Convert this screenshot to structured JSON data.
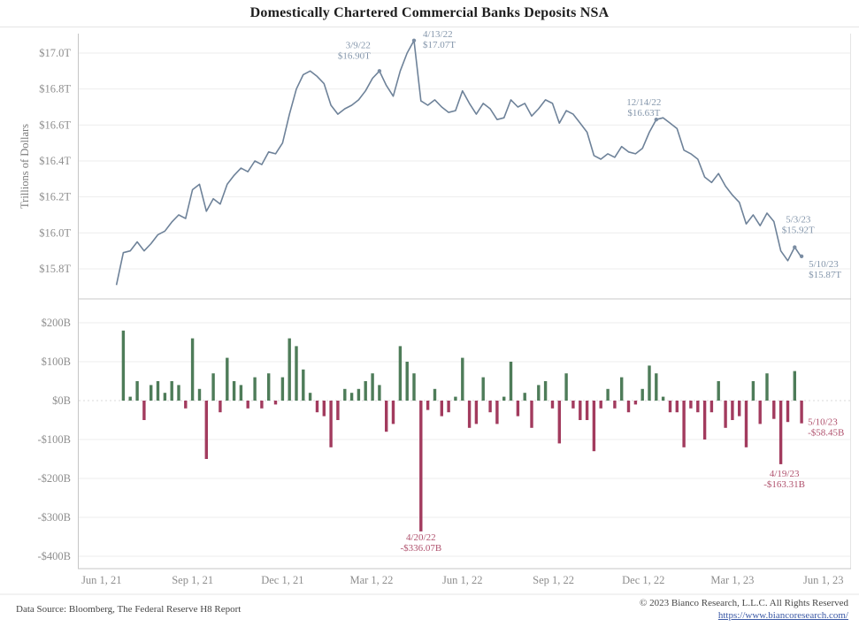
{
  "title": "Domestically Chartered Commercial Banks Deposits NSA",
  "footer": {
    "source": "Data Source: Bloomberg, The Federal Reserve H8 Report",
    "copyright": "© 2023 Bianco Research, L.L.C. All Rights Reserved",
    "link": "https://www.biancoresearch.com/"
  },
  "colors": {
    "line": "#6e8299",
    "marker": "#7b8da3",
    "line_annotation": "#8496ab",
    "bar_positive": "#4e7c59",
    "bar_negative": "#a23b5e",
    "bar_annotation": "#b0526e",
    "grid": "#ededed",
    "zero_line": "#d9d9d9",
    "axis": "#c6c6c6",
    "frame": "#e4e4e4",
    "tick_text": "#8e8e8e"
  },
  "x_axis": {
    "domain": [
      "2021-05-08",
      "2023-06-29"
    ],
    "ticks": [
      {
        "date": "2021-06-01",
        "label": "Jun 1, 21"
      },
      {
        "date": "2021-09-01",
        "label": "Sep 1, 21"
      },
      {
        "date": "2021-12-01",
        "label": "Dec 1, 21"
      },
      {
        "date": "2022-03-01",
        "label": "Mar 1, 22"
      },
      {
        "date": "2022-06-01",
        "label": "Jun 1, 22"
      },
      {
        "date": "2022-09-01",
        "label": "Sep 1, 22"
      },
      {
        "date": "2022-12-01",
        "label": "Dec 1, 22"
      },
      {
        "date": "2023-03-01",
        "label": "Mar 1, 23"
      },
      {
        "date": "2023-06-01",
        "label": "Jun 1, 23"
      }
    ]
  },
  "chart_data": [
    {
      "type": "line",
      "name": "deposits-level",
      "ylabel": "Trillions of Dollars",
      "ylim": [
        15.63,
        17.11
      ],
      "y_ticks": [
        {
          "value": 17.0,
          "label": "$17.0T"
        },
        {
          "value": 16.8,
          "label": "$16.8T"
        },
        {
          "value": 16.6,
          "label": "$16.6T"
        },
        {
          "value": 16.4,
          "label": "$16.4T"
        },
        {
          "value": 16.2,
          "label": "$16.2T"
        },
        {
          "value": 16.0,
          "label": "$16.0T"
        },
        {
          "value": 15.8,
          "label": "$15.8T"
        }
      ],
      "x": [
        "2021-06-16",
        "2021-06-23",
        "2021-06-30",
        "2021-07-07",
        "2021-07-14",
        "2021-07-21",
        "2021-07-28",
        "2021-08-04",
        "2021-08-11",
        "2021-08-18",
        "2021-08-25",
        "2021-09-01",
        "2021-09-08",
        "2021-09-15",
        "2021-09-22",
        "2021-09-29",
        "2021-10-06",
        "2021-10-13",
        "2021-10-20",
        "2021-10-27",
        "2021-11-03",
        "2021-11-10",
        "2021-11-17",
        "2021-11-24",
        "2021-12-01",
        "2021-12-08",
        "2021-12-15",
        "2021-12-22",
        "2021-12-29",
        "2022-01-05",
        "2022-01-12",
        "2022-01-19",
        "2022-01-26",
        "2022-02-02",
        "2022-02-09",
        "2022-02-16",
        "2022-02-23",
        "2022-03-02",
        "2022-03-09",
        "2022-03-16",
        "2022-03-23",
        "2022-03-30",
        "2022-04-06",
        "2022-04-13",
        "2022-04-20",
        "2022-04-27",
        "2022-05-04",
        "2022-05-11",
        "2022-05-18",
        "2022-05-25",
        "2022-06-01",
        "2022-06-08",
        "2022-06-15",
        "2022-06-22",
        "2022-06-29",
        "2022-07-06",
        "2022-07-13",
        "2022-07-20",
        "2022-07-27",
        "2022-08-03",
        "2022-08-10",
        "2022-08-17",
        "2022-08-24",
        "2022-08-31",
        "2022-09-07",
        "2022-09-14",
        "2022-09-21",
        "2022-09-28",
        "2022-10-05",
        "2022-10-12",
        "2022-10-19",
        "2022-10-26",
        "2022-11-02",
        "2022-11-09",
        "2022-11-16",
        "2022-11-23",
        "2022-11-30",
        "2022-12-07",
        "2022-12-14",
        "2022-12-21",
        "2022-12-28",
        "2023-01-04",
        "2023-01-11",
        "2023-01-18",
        "2023-01-25",
        "2023-02-01",
        "2023-02-08",
        "2023-02-15",
        "2023-02-22",
        "2023-03-01",
        "2023-03-08",
        "2023-03-15",
        "2023-03-22",
        "2023-03-29",
        "2023-04-05",
        "2023-04-12",
        "2023-04-19",
        "2023-04-26",
        "2023-05-03",
        "2023-05-10"
      ],
      "values": [
        15.71,
        15.89,
        15.9,
        15.95,
        15.9,
        15.94,
        15.99,
        16.01,
        16.06,
        16.1,
        16.08,
        16.24,
        16.27,
        16.12,
        16.19,
        16.16,
        16.27,
        16.32,
        16.36,
        16.34,
        16.4,
        16.38,
        16.45,
        16.44,
        16.5,
        16.66,
        16.8,
        16.88,
        16.9,
        16.87,
        16.83,
        16.71,
        16.66,
        16.69,
        16.71,
        16.74,
        16.79,
        16.86,
        16.9,
        16.82,
        16.76,
        16.9,
        17.0,
        17.07,
        16.734,
        16.71,
        16.74,
        16.7,
        16.67,
        16.68,
        16.79,
        16.72,
        16.66,
        16.72,
        16.69,
        16.63,
        16.64,
        16.74,
        16.7,
        16.72,
        16.65,
        16.69,
        16.74,
        16.72,
        16.61,
        16.68,
        16.66,
        16.61,
        16.56,
        16.43,
        16.41,
        16.44,
        16.42,
        16.48,
        16.45,
        16.44,
        16.47,
        16.56,
        16.63,
        16.64,
        16.61,
        16.58,
        16.46,
        16.44,
        16.41,
        16.31,
        16.28,
        16.33,
        16.26,
        16.21,
        16.17,
        16.05,
        16.1,
        16.04,
        16.11,
        16.063,
        15.9,
        15.845,
        15.921,
        15.863
      ],
      "annotations": [
        {
          "date": "2022-03-09",
          "value": 16.9,
          "date_label": "3/9/22",
          "value_label": "$16.90T"
        },
        {
          "date": "2022-04-13",
          "value": 17.07,
          "date_label": "4/13/22",
          "value_label": "$17.07T"
        },
        {
          "date": "2022-12-14",
          "value": 16.63,
          "date_label": "12/14/22",
          "value_label": "$16.63T"
        },
        {
          "date": "2023-05-03",
          "value": 15.92,
          "date_label": "5/3/23",
          "value_label": "$15.92T"
        },
        {
          "date": "2023-05-10",
          "value": 15.87,
          "date_label": "5/10/23",
          "value_label": "$15.87T"
        }
      ]
    },
    {
      "type": "bar",
      "name": "weekly-change",
      "ylabel": "",
      "ylim": [
        -432,
        239
      ],
      "y_ticks": [
        {
          "value": 200,
          "label": "$200B"
        },
        {
          "value": 100,
          "label": "$100B"
        },
        {
          "value": 0,
          "label": "$0B"
        },
        {
          "value": -100,
          "label": "-$100B"
        },
        {
          "value": -200,
          "label": "-$200B"
        },
        {
          "value": -300,
          "label": "-$300B"
        },
        {
          "value": -400,
          "label": "-$400B"
        }
      ],
      "x": [
        "2021-06-23",
        "2021-06-30",
        "2021-07-07",
        "2021-07-14",
        "2021-07-21",
        "2021-07-28",
        "2021-08-04",
        "2021-08-11",
        "2021-08-18",
        "2021-08-25",
        "2021-09-01",
        "2021-09-08",
        "2021-09-15",
        "2021-09-22",
        "2021-09-29",
        "2021-10-06",
        "2021-10-13",
        "2021-10-20",
        "2021-10-27",
        "2021-11-03",
        "2021-11-10",
        "2021-11-17",
        "2021-11-24",
        "2021-12-01",
        "2021-12-08",
        "2021-12-15",
        "2021-12-22",
        "2021-12-29",
        "2022-01-05",
        "2022-01-12",
        "2022-01-19",
        "2022-01-26",
        "2022-02-02",
        "2022-02-09",
        "2022-02-16",
        "2022-02-23",
        "2022-03-02",
        "2022-03-09",
        "2022-03-16",
        "2022-03-23",
        "2022-03-30",
        "2022-04-06",
        "2022-04-13",
        "2022-04-20",
        "2022-04-27",
        "2022-05-04",
        "2022-05-11",
        "2022-05-18",
        "2022-05-25",
        "2022-06-01",
        "2022-06-08",
        "2022-06-15",
        "2022-06-22",
        "2022-06-29",
        "2022-07-06",
        "2022-07-13",
        "2022-07-20",
        "2022-07-27",
        "2022-08-03",
        "2022-08-10",
        "2022-08-17",
        "2022-08-24",
        "2022-08-31",
        "2022-09-07",
        "2022-09-14",
        "2022-09-21",
        "2022-09-28",
        "2022-10-05",
        "2022-10-12",
        "2022-10-19",
        "2022-10-26",
        "2022-11-02",
        "2022-11-09",
        "2022-11-16",
        "2022-11-23",
        "2022-11-30",
        "2022-12-07",
        "2022-12-14",
        "2022-12-21",
        "2022-12-28",
        "2023-01-04",
        "2023-01-11",
        "2023-01-18",
        "2023-01-25",
        "2023-02-01",
        "2023-02-08",
        "2023-02-15",
        "2023-02-22",
        "2023-03-01",
        "2023-03-08",
        "2023-03-15",
        "2023-03-22",
        "2023-03-29",
        "2023-04-05",
        "2023-04-12",
        "2023-04-19",
        "2023-04-26",
        "2023-05-03",
        "2023-05-10"
      ],
      "values": [
        180,
        10,
        50,
        -50,
        40,
        50,
        20,
        50,
        40,
        -20,
        160,
        30,
        -150,
        70,
        -30,
        110,
        50,
        40,
        -20,
        60,
        -20,
        70,
        -10,
        60,
        160,
        140,
        80,
        20,
        -30,
        -40,
        -120,
        -50,
        30,
        20,
        30,
        50,
        70,
        40,
        -80,
        -60,
        140,
        100,
        70,
        -336.07,
        -24,
        30,
        -40,
        -30,
        10,
        110,
        -70,
        -60,
        60,
        -30,
        -60,
        10,
        100,
        -40,
        20,
        -70,
        40,
        50,
        -20,
        -110,
        70,
        -20,
        -50,
        -50,
        -130,
        -20,
        30,
        -20,
        60,
        -30,
        -10,
        30,
        90,
        70,
        10,
        -30,
        -30,
        -120,
        -20,
        -30,
        -100,
        -30,
        50,
        -70,
        -50,
        -40,
        -120,
        50,
        -60,
        70,
        -47,
        -163.31,
        -55,
        76,
        -58.45
      ],
      "annotations": [
        {
          "date": "2022-04-20",
          "value": -336.07,
          "date_label": "4/20/22",
          "value_label": "-$336.07B"
        },
        {
          "date": "2023-04-19",
          "value": -163.31,
          "date_label": "4/19/23",
          "value_label": "-$163.31B"
        },
        {
          "date": "2023-05-10",
          "value": -58.45,
          "date_label": "5/10/23",
          "value_label": "-$58.45B"
        }
      ]
    }
  ]
}
